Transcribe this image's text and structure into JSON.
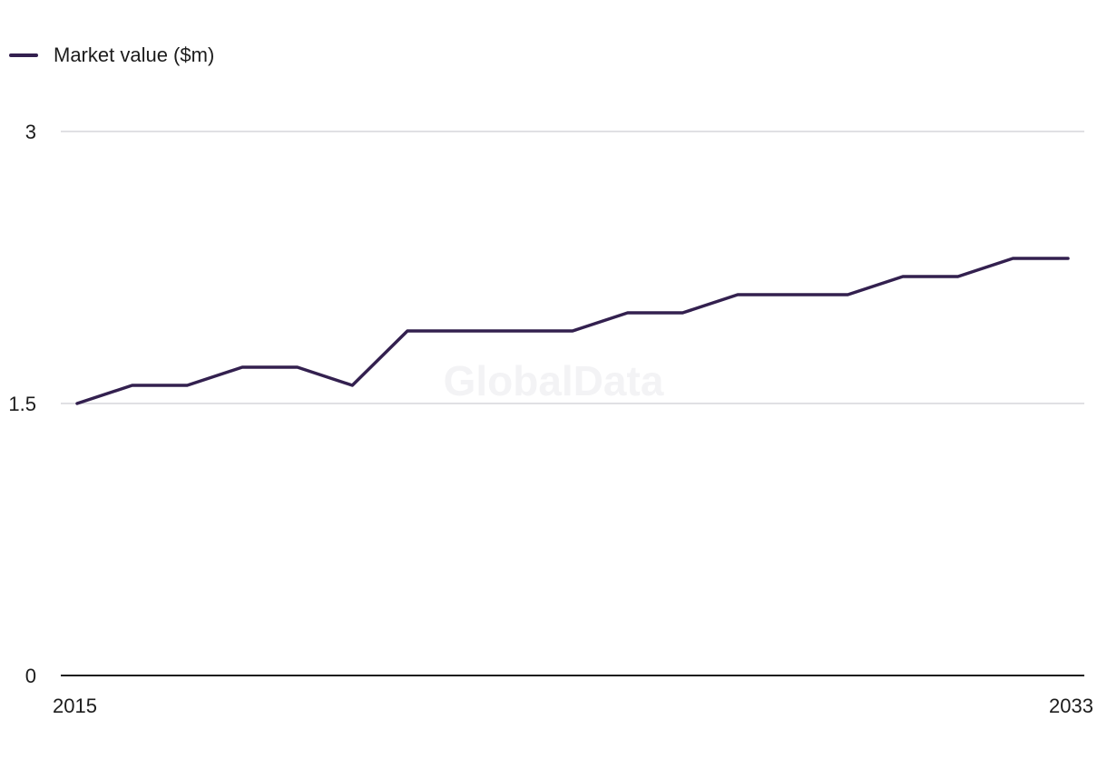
{
  "legend": {
    "label": "Market value ($m)"
  },
  "watermark": "GlobalData",
  "colors": {
    "series": "#33204f",
    "grid": "#d6d6dc",
    "axis": "#1c1c1c"
  },
  "chart_data": {
    "type": "line",
    "title": "",
    "xlabel": "",
    "ylabel": "",
    "x": [
      2015,
      2016,
      2017,
      2018,
      2019,
      2020,
      2021,
      2022,
      2023,
      2024,
      2025,
      2026,
      2027,
      2028,
      2029,
      2030,
      2031,
      2032,
      2033
    ],
    "series": [
      {
        "name": "Market value ($m)",
        "values": [
          1.5,
          1.6,
          1.6,
          1.7,
          1.7,
          1.6,
          1.9,
          1.9,
          1.9,
          1.9,
          2.0,
          2.0,
          2.1,
          2.1,
          2.1,
          2.2,
          2.2,
          2.3,
          2.3
        ]
      }
    ],
    "ylim": [
      0,
      3
    ],
    "yticks": [
      0,
      1.5,
      3
    ],
    "xtick_labels": [
      "2015",
      "2033"
    ],
    "grid": true,
    "legend_position": "top-left"
  }
}
